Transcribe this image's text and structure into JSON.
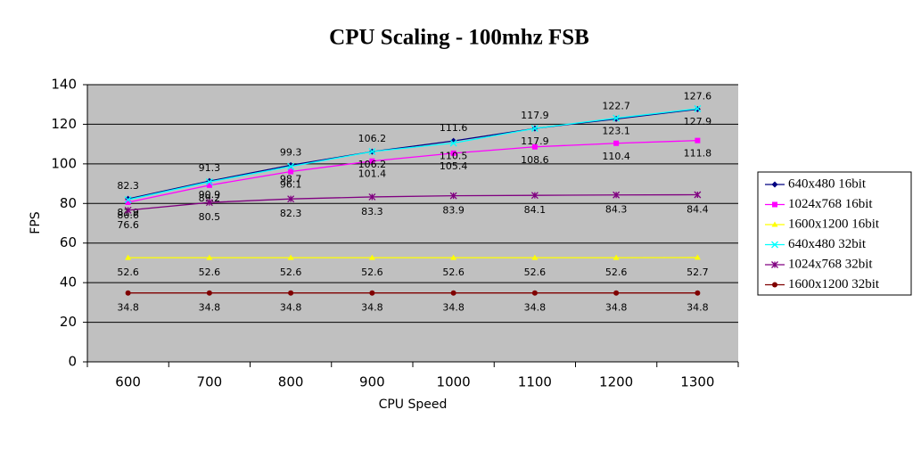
{
  "chart_data": {
    "type": "line",
    "title": "CPU Scaling - 100mhz FSB",
    "x_label": "CPU Speed",
    "y_label": "FPS",
    "categories": [
      "600",
      "700",
      "800",
      "900",
      "1000",
      "1100",
      "1200",
      "1300"
    ],
    "ylim": [
      0,
      140
    ],
    "yticks": [
      0,
      20,
      40,
      60,
      80,
      100,
      120,
      140
    ],
    "grid": true,
    "legend": "right",
    "series": [
      {
        "name": "640x480 16bit",
        "color": "#000080",
        "marker": "diamond",
        "values": [
          82.3,
          91.3,
          99.3,
          106.2,
          111.6,
          117.9,
          122.7,
          127.6
        ]
      },
      {
        "name": "1024x768 16bit",
        "color": "#ff00ff",
        "marker": "square",
        "values": [
          80.6,
          89.2,
          96.1,
          101.4,
          105.4,
          108.6,
          110.4,
          111.8
        ]
      },
      {
        "name": "1600x1200 16bit",
        "color": "#ffff00",
        "marker": "triangle",
        "values": [
          52.6,
          52.6,
          52.6,
          52.6,
          52.6,
          52.6,
          52.6,
          52.7
        ]
      },
      {
        "name": "640x480 32bit",
        "color": "#00ffff",
        "marker": "x",
        "values": [
          81.9,
          90.9,
          98.7,
          106.2,
          110.5,
          117.9,
          123.1,
          127.9
        ]
      },
      {
        "name": "1024x768 32bit",
        "color": "#800080",
        "marker": "star",
        "values": [
          76.6,
          80.5,
          82.3,
          83.3,
          83.9,
          84.1,
          84.3,
          84.4
        ]
      },
      {
        "name": "1600x1200 32bit",
        "color": "#800000",
        "marker": "circle",
        "values": [
          34.8,
          34.8,
          34.8,
          34.8,
          34.8,
          34.8,
          34.8,
          34.8
        ]
      }
    ]
  }
}
